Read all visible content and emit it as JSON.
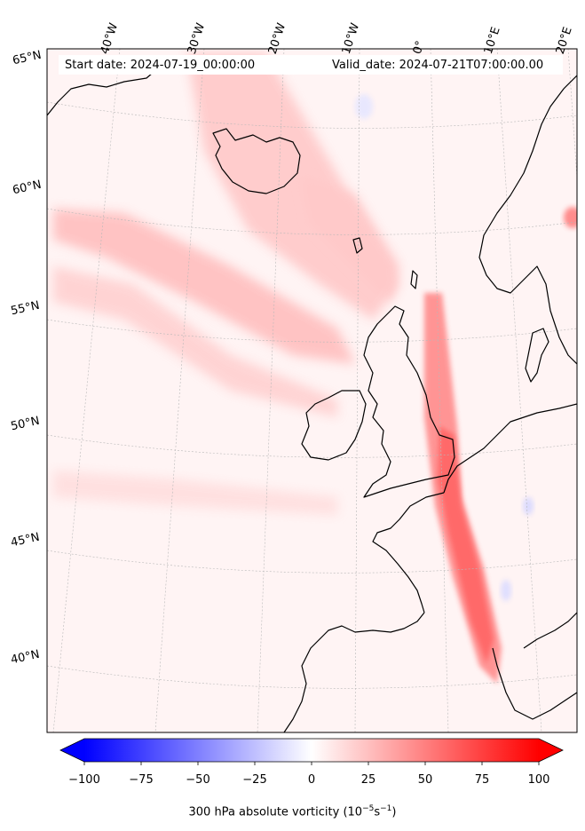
{
  "header": {
    "start_date": "Start date: 2024-07-19_00:00:00",
    "valid_date": "Valid_date: 2024-07-21T07:00:00.00"
  },
  "longitude_labels": [
    "40°W",
    "30°W",
    "20°W",
    "10°W",
    "0°",
    "10°E",
    "20°E"
  ],
  "latitude_labels": [
    "65°N",
    "60°N",
    "55°N",
    "50°N",
    "45°N",
    "40°N"
  ],
  "colorbar": {
    "ticks": [
      "−100",
      "−75",
      "−50",
      "−25",
      "0",
      "25",
      "50",
      "75",
      "100"
    ],
    "label": "300 hPa absolute vorticity (10",
    "label_exp1": "−5",
    "label_mid": "s",
    "label_exp2": "−1",
    "label_end": ")",
    "min": -100,
    "max": 100,
    "colormap": "bwr",
    "extend": "both"
  },
  "colors": {
    "negative": "#0000ff",
    "zero": "#ffffff",
    "positive": "#ff0000",
    "coastline": "#000000",
    "gridline": "#b0b0b0"
  }
}
